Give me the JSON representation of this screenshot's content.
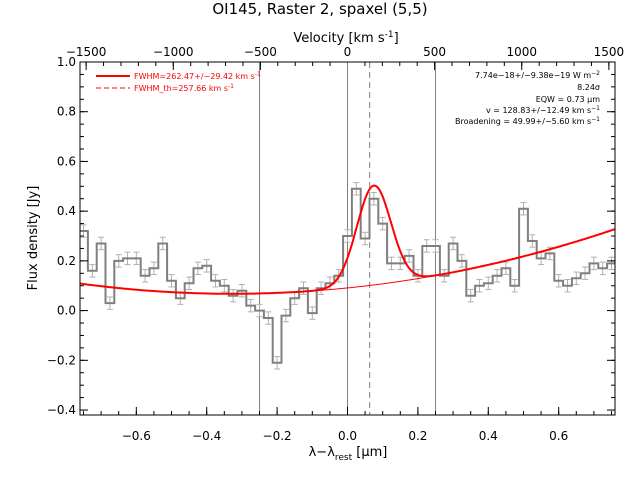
{
  "chart_data": {
    "type": "line",
    "title": "OI145, Raster 2, spaxel (5,5)",
    "xlabel": "λ−λ",
    "xlabel_sub": "rest",
    "xlabel_unit": " [μm]",
    "ylabel": "Flux density [Jy]",
    "top_xlabel": "Velocity [km s",
    "top_xlabel_sup": "-1",
    "top_xlabel_end": "]",
    "xlim": [
      -0.76,
      0.76
    ],
    "ylim": [
      -0.42,
      1.0
    ],
    "xticks": [
      -0.6,
      -0.4,
      -0.2,
      0.0,
      0.2,
      0.4,
      0.6
    ],
    "xtick_labels": [
      "−0.6",
      "−0.4",
      "−0.2",
      "0.0",
      "0.2",
      "0.4",
      "0.6"
    ],
    "yticks": [
      -0.4,
      -0.2,
      0.0,
      0.2,
      0.4,
      0.6,
      0.8,
      1.0
    ],
    "ytick_labels": [
      "−0.4",
      "−0.2",
      "0.0",
      "0.2",
      "0.4",
      "0.6",
      "0.8",
      "1.0"
    ],
    "velocity_ticks": [
      -1500,
      -1000,
      -500,
      0,
      500,
      1000,
      1500
    ],
    "velocity_tick_labels": [
      "−1500",
      "−1000",
      "−500",
      "0",
      "500",
      "1000",
      "1500"
    ],
    "km_s_per_um": 2020,
    "grid": false,
    "legend_position": "top-left",
    "vertical_lines_solid": [
      -0.25,
      0.0,
      0.25
    ],
    "vertical_line_dashed": 0.063,
    "spectrum": {
      "bin_width": 0.025,
      "x": [
        -0.75,
        -0.725,
        -0.7,
        -0.675,
        -0.65,
        -0.625,
        -0.6,
        -0.575,
        -0.55,
        -0.525,
        -0.5,
        -0.475,
        -0.45,
        -0.425,
        -0.4,
        -0.375,
        -0.35,
        -0.325,
        -0.3,
        -0.275,
        -0.25,
        -0.225,
        -0.2,
        -0.175,
        -0.15,
        -0.125,
        -0.1,
        -0.075,
        -0.05,
        -0.025,
        0.0,
        0.025,
        0.05,
        0.075,
        0.1,
        0.125,
        0.15,
        0.175,
        0.2,
        0.225,
        0.25,
        0.275,
        0.3,
        0.325,
        0.35,
        0.375,
        0.4,
        0.425,
        0.45,
        0.475,
        0.5,
        0.525,
        0.55,
        0.575,
        0.6,
        0.625,
        0.65,
        0.675,
        0.7,
        0.725,
        0.75
      ],
      "y": [
        0.32,
        0.16,
        0.27,
        0.03,
        0.2,
        0.21,
        0.21,
        0.14,
        0.17,
        0.27,
        0.12,
        0.05,
        0.11,
        0.17,
        0.18,
        0.12,
        0.1,
        0.06,
        0.08,
        0.02,
        0.0,
        -0.03,
        -0.21,
        -0.02,
        0.05,
        0.09,
        -0.01,
        0.09,
        0.11,
        0.14,
        0.3,
        0.49,
        0.29,
        0.45,
        0.35,
        0.19,
        0.19,
        0.22,
        0.14,
        0.26,
        0.26,
        0.14,
        0.27,
        0.2,
        0.06,
        0.1,
        0.11,
        0.14,
        0.17,
        0.1,
        0.41,
        0.28,
        0.21,
        0.23,
        0.12,
        0.1,
        0.13,
        0.15,
        0.19,
        0.17,
        0.19
      ],
      "err": 0.025
    },
    "fit": {
      "baseline_quadratic": {
        "a": 0.079,
        "b": 0.1,
        "c": 0.22,
        "x0": -0.1
      },
      "gaussian": {
        "center": 0.075,
        "amplitude": 0.4,
        "sigma": 0.0485
      }
    },
    "series": [
      {
        "name": "FWHM=262.47+/−29.42 km s",
        "name_sup": "-1",
        "color": "#ff0000",
        "style": "solid"
      },
      {
        "name": "FWHM_th=257.66 km s",
        "name_sup": "-1",
        "color": "#ff0000",
        "style": "dashed"
      }
    ],
    "annotations": [
      {
        "text": "7.74e−18+/−9.38e−19 W m",
        "sup": "−2"
      },
      {
        "text": "8.24σ",
        "sup": ""
      },
      {
        "text": "EQW = 0.73 μm",
        "sup": ""
      },
      {
        "text": "v = 128.83+/−12.49 km s",
        "sup": "−1"
      },
      {
        "text": "Broadening = 49.99+/−5.60 km s",
        "sup": "−1"
      }
    ],
    "colors": {
      "spectrum": "#7f7f7f",
      "errorbar": "#b0b0b0",
      "fit": "#ff0000",
      "axes": "#000000",
      "vline": "#808080"
    }
  }
}
